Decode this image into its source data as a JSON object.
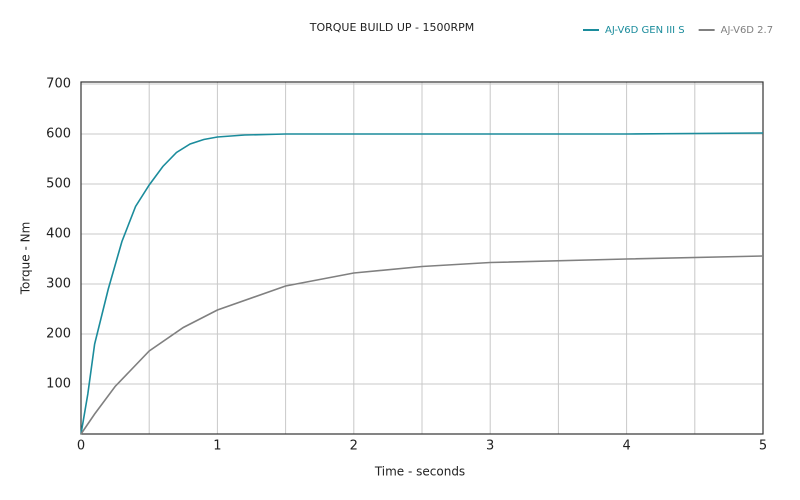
{
  "chart_data": {
    "type": "line",
    "title": "TORQUE BUILD UP - 1500RPM",
    "x_label": "Time - seconds",
    "y_label": "Torque - Nm",
    "xlim": [
      0,
      5
    ],
    "ylim": [
      0,
      700
    ],
    "xticks": [
      0,
      1,
      2,
      3,
      4,
      5
    ],
    "xminor": [
      0.5,
      1.5,
      2.5,
      3.5,
      4.5
    ],
    "yticks": [
      100,
      200,
      300,
      400,
      500,
      600,
      700
    ],
    "grid": true,
    "legend": "top-right",
    "series": [
      {
        "name": "AJ-V6D GEN III S",
        "color": "#1b8c9c",
        "x": [
          0,
          0.05,
          0.1,
          0.2,
          0.3,
          0.4,
          0.5,
          0.6,
          0.7,
          0.8,
          0.9,
          1.0,
          1.2,
          1.5,
          2,
          3,
          4,
          5
        ],
        "values": [
          0,
          80,
          180,
          290,
          385,
          455,
          498,
          535,
          563,
          580,
          589,
          594,
          598,
          600,
          600,
          600,
          600,
          602
        ]
      },
      {
        "name": "AJ-V6D 2.7",
        "color": "#808080",
        "x": [
          0,
          0.1,
          0.25,
          0.5,
          0.75,
          1,
          1.5,
          2,
          2.5,
          3,
          4,
          5
        ],
        "values": [
          0,
          40,
          95,
          166,
          213,
          248,
          296,
          322,
          335,
          343,
          350,
          356
        ]
      }
    ]
  }
}
